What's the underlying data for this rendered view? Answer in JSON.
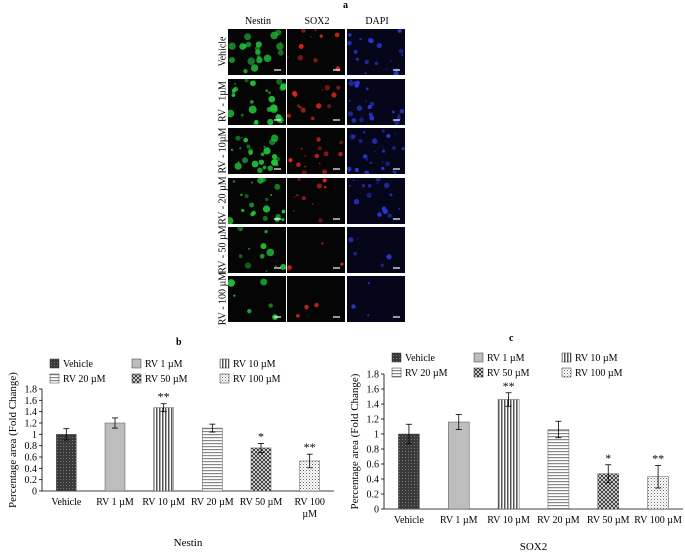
{
  "figure": {
    "panel_a_label": "a",
    "panel_b_label": "b",
    "panel_c_label": "c",
    "columns": [
      "Nestin",
      "SOX2",
      "DAPI"
    ],
    "rows": [
      "Vehicle",
      "RV - 1µM",
      "RV - 10µM",
      "RV - 20 µM",
      "RV - 50 µM",
      "RV - 100 µM"
    ],
    "colors": {
      "nestin": "#22c53a",
      "sox2": "#d8281e",
      "dapi": "#2a3ad8"
    }
  },
  "chart_data": [
    {
      "type": "bar",
      "title": "",
      "xlabel": "Nestin",
      "ylabel": "Percentage area (Fold Change)",
      "ylim": [
        0,
        1.8
      ],
      "yticks": [
        "0",
        "0.2",
        "0.4",
        "0.6",
        "0.8",
        "1",
        "1.2",
        "1.4",
        "1.6",
        "1.8"
      ],
      "categories": [
        "Vehicle",
        "RV 1 µM",
        "RV 10 µM",
        "RV 20 µM",
        "RV 50 µM",
        "RV 100 µM"
      ],
      "category_lines": [
        [
          "Vehicle"
        ],
        [
          "RV 1 µM"
        ],
        [
          "RV 10 µM"
        ],
        [
          "RV 20 µM"
        ],
        [
          "RV 50 µM"
        ],
        [
          "RV 100",
          "µM"
        ]
      ],
      "values": [
        1.0,
        1.2,
        1.47,
        1.11,
        0.76,
        0.53
      ],
      "errors": [
        0.1,
        0.09,
        0.07,
        0.07,
        0.08,
        0.12
      ],
      "significance": [
        "",
        "",
        "**",
        "",
        "*",
        "**"
      ],
      "legend": [
        "Vehicle",
        "RV 1 µM",
        "RV 10 µM",
        "RV 20 µM",
        "RV 50 µM",
        "RV 100 µM"
      ],
      "legend_position": "top"
    },
    {
      "type": "bar",
      "title": "",
      "xlabel": "SOX2",
      "ylabel": "Percentage area (Fold Change)",
      "ylim": [
        0,
        1.8
      ],
      "yticks": [
        "0",
        "0.2",
        "0.4",
        "0.6",
        "0.8",
        "1",
        "1.2",
        "1.4",
        "1.6",
        "1.8"
      ],
      "categories": [
        "Vehicle",
        "RV 1 µM",
        "RV 10 µM",
        "RV 20 µM",
        "RV 50 µM",
        "RV 100 µM"
      ],
      "category_lines": [
        [
          "Vehicle"
        ],
        [
          "RV 1 µM"
        ],
        [
          "RV 10 µM"
        ],
        [
          "RV 20 µM"
        ],
        [
          "RV 50 µM"
        ],
        [
          "RV 100 µM"
        ]
      ],
      "values": [
        1.0,
        1.16,
        1.46,
        1.06,
        0.47,
        0.43
      ],
      "errors": [
        0.13,
        0.1,
        0.09,
        0.11,
        0.12,
        0.15
      ],
      "significance": [
        "",
        "",
        "**",
        "",
        "*",
        "**"
      ],
      "legend": [
        "Vehicle",
        "RV 1 µM",
        "RV 10 µM",
        "RV 20 µM",
        "RV 50 µM",
        "RV 100 µM"
      ],
      "legend_position": "top"
    }
  ]
}
